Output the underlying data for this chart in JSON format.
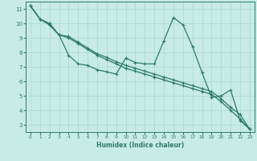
{
  "xlabel": "Humidex (Indice chaleur)",
  "xlim": [
    -0.5,
    23.5
  ],
  "ylim": [
    2.5,
    11.5
  ],
  "yticks": [
    3,
    4,
    5,
    6,
    7,
    8,
    9,
    10,
    11
  ],
  "xticks": [
    0,
    1,
    2,
    3,
    4,
    5,
    6,
    7,
    8,
    9,
    10,
    11,
    12,
    13,
    14,
    15,
    16,
    17,
    18,
    19,
    20,
    21,
    22,
    23
  ],
  "bg_color": "#c8ebe6",
  "line_color": "#2d7a6a",
  "grid_color": "#b0ddd8",
  "series1_x": [
    0,
    1,
    2,
    3,
    4,
    5,
    6,
    7,
    8,
    9,
    10,
    11,
    12,
    13,
    14,
    15,
    16,
    17,
    18,
    19,
    20,
    21,
    22,
    23
  ],
  "series1_y": [
    11.2,
    10.3,
    10.0,
    9.2,
    7.8,
    7.2,
    7.1,
    6.8,
    6.65,
    6.5,
    7.6,
    7.3,
    7.2,
    7.2,
    8.8,
    10.4,
    9.9,
    8.4,
    6.6,
    4.9,
    5.0,
    5.4,
    3.3,
    2.7
  ],
  "series2_x": [
    0,
    1,
    2,
    3,
    4,
    5,
    6,
    7,
    8,
    9,
    10,
    11,
    12,
    13,
    14,
    15,
    16,
    17,
    18,
    19,
    20,
    21,
    22,
    23
  ],
  "series2_y": [
    11.2,
    10.3,
    9.9,
    9.2,
    9.1,
    8.7,
    8.3,
    7.9,
    7.65,
    7.35,
    7.1,
    6.9,
    6.7,
    6.5,
    6.3,
    6.1,
    5.9,
    5.7,
    5.5,
    5.3,
    4.8,
    4.2,
    3.7,
    2.7
  ],
  "series3_x": [
    0,
    1,
    2,
    3,
    4,
    5,
    6,
    7,
    8,
    9,
    10,
    11,
    12,
    13,
    14,
    15,
    16,
    17,
    18,
    19,
    20,
    21,
    22,
    23
  ],
  "series3_y": [
    11.2,
    10.3,
    9.9,
    9.2,
    9.0,
    8.6,
    8.2,
    7.8,
    7.5,
    7.2,
    6.9,
    6.7,
    6.5,
    6.3,
    6.1,
    5.9,
    5.7,
    5.5,
    5.3,
    5.1,
    4.6,
    4.0,
    3.4,
    2.7
  ]
}
